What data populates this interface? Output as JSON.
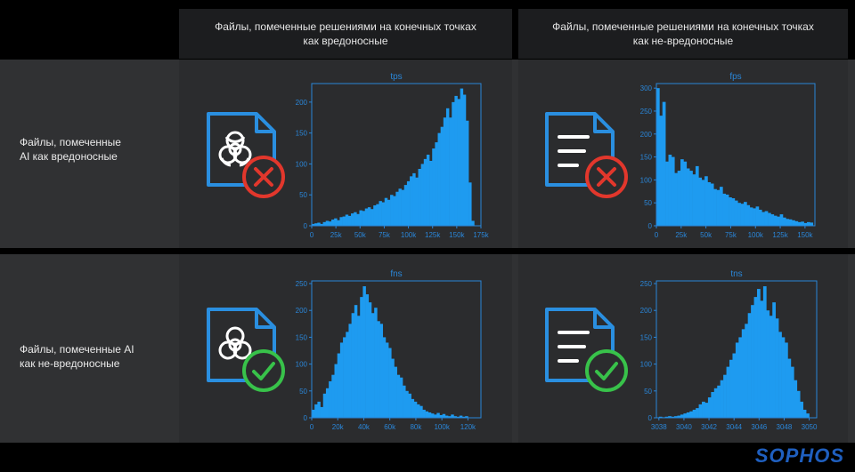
{
  "headers": {
    "col1": "Файлы, помеченные решениями на конечных точках как вредоносные",
    "col2": "Файлы, помеченные решениями на конечных точках как не-вредоносные"
  },
  "rows": {
    "row1": "Файлы, помеченные AI как вредоносные",
    "row2": "Файлы, помеченные AI как не-вредоносные"
  },
  "brand": "SOPHOS",
  "colors": {
    "bar": "#1e9bf0",
    "axis": "#2a86d8",
    "icon_blue": "#2a8fe0",
    "red": "#e2372c",
    "green": "#38c24a"
  },
  "icons": [
    "biohazard-file-icon",
    "document-file-icon",
    "x-circle-icon",
    "check-circle-icon"
  ],
  "chart_data": [
    {
      "type": "bar",
      "title": "tps",
      "x_ticks": [
        "0",
        "25k",
        "50k",
        "75k",
        "100k",
        "125k",
        "150k",
        "175k"
      ],
      "y_ticks": [
        "0",
        "50",
        "100",
        "150",
        "200"
      ],
      "xlim": [
        0,
        175000
      ],
      "ylim": [
        0,
        230
      ],
      "values": [
        3,
        4,
        5,
        3,
        6,
        8,
        7,
        10,
        12,
        9,
        14,
        15,
        18,
        16,
        20,
        22,
        19,
        25,
        24,
        28,
        30,
        27,
        33,
        35,
        40,
        38,
        45,
        42,
        50,
        48,
        55,
        60,
        58,
        66,
        72,
        80,
        85,
        78,
        92,
        100,
        108,
        115,
        105,
        125,
        135,
        150,
        160,
        175,
        190,
        175,
        200,
        210,
        205,
        222,
        212,
        170,
        70,
        8
      ],
      "bin_range": [
        0,
        168000
      ]
    },
    {
      "type": "bar",
      "title": "fps",
      "x_ticks": [
        "0",
        "25k",
        "50k",
        "75k",
        "100k",
        "125k",
        "150k"
      ],
      "y_ticks": [
        "0",
        "50",
        "100",
        "150",
        "200",
        "250",
        "300"
      ],
      "xlim": [
        0,
        160000
      ],
      "ylim": [
        0,
        310
      ],
      "values": [
        300,
        240,
        270,
        140,
        155,
        150,
        115,
        120,
        145,
        140,
        125,
        120,
        112,
        130,
        105,
        100,
        108,
        95,
        92,
        80,
        78,
        85,
        70,
        68,
        62,
        60,
        55,
        50,
        48,
        52,
        45,
        40,
        38,
        42,
        35,
        30,
        32,
        28,
        25,
        22,
        20,
        25,
        18,
        15,
        14,
        12,
        10,
        8,
        9,
        6,
        8,
        7
      ],
      "bin_range": [
        0,
        158000
      ]
    },
    {
      "type": "bar",
      "title": "fns",
      "x_ticks": [
        "0",
        "20k",
        "40k",
        "60k",
        "80k",
        "100k",
        "120k"
      ],
      "y_ticks": [
        "0",
        "50",
        "100",
        "150",
        "200",
        "250"
      ],
      "xlim": [
        0,
        130000
      ],
      "ylim": [
        0,
        255
      ],
      "values": [
        15,
        25,
        30,
        20,
        45,
        55,
        68,
        80,
        100,
        120,
        140,
        150,
        160,
        175,
        195,
        210,
        190,
        225,
        245,
        230,
        215,
        195,
        205,
        180,
        175,
        150,
        140,
        130,
        110,
        95,
        80,
        75,
        60,
        50,
        45,
        35,
        30,
        25,
        22,
        15,
        12,
        10,
        8,
        6,
        9,
        5,
        7,
        4,
        3,
        6,
        3,
        2,
        4,
        2,
        3
      ],
      "bin_range": [
        0,
        120000
      ]
    },
    {
      "type": "bar",
      "title": "tns",
      "x_ticks": [
        "3038",
        "3040",
        "3042",
        "3044",
        "3046",
        "3048",
        "3050"
      ],
      "y_ticks": [
        "0",
        "50",
        "100",
        "150",
        "200",
        "250"
      ],
      "xlim": [
        3037.8,
        3050.6
      ],
      "ylim": [
        0,
        255
      ],
      "values": [
        2,
        1,
        2,
        3,
        2,
        3,
        4,
        6,
        8,
        10,
        12,
        15,
        18,
        25,
        30,
        28,
        38,
        48,
        55,
        60,
        70,
        80,
        95,
        108,
        120,
        140,
        150,
        165,
        175,
        195,
        210,
        225,
        240,
        218,
        245,
        200,
        190,
        215,
        185,
        160,
        150,
        140,
        110,
        95,
        70,
        50,
        30,
        15,
        8
      ],
      "bin_range": [
        3038,
        3050
      ]
    }
  ]
}
